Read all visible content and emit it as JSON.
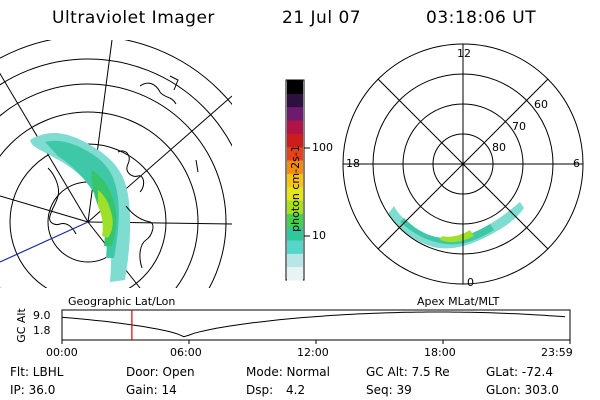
{
  "header": {
    "instrument": "Ultraviolet Imager",
    "date": "21 Jul 07",
    "time": "03:18:06 UT"
  },
  "left_panel": {
    "caption": "Geographic Lat/Lon",
    "map_type": "polar stereographic, coastlines with aurora emission"
  },
  "colorbar": {
    "label": "photon cm-2s-1",
    "ticks": [
      "100",
      "10"
    ],
    "scale": "log",
    "colors": [
      "#e8f4f4",
      "#b8e6e6",
      "#55d6c8",
      "#2ec89a",
      "#44d24a",
      "#a8e11a",
      "#e6e614",
      "#f6c40c",
      "#f48c0a",
      "#e8421a",
      "#cc1c1c",
      "#b01446",
      "#6e1a6e",
      "#2c1040",
      "#000000"
    ]
  },
  "right_panel": {
    "caption": "Apex MLat/MLT",
    "mlt_labels": [
      "12",
      "18",
      "6",
      "0"
    ],
    "lat_labels": [
      "60",
      "70",
      "80"
    ]
  },
  "timeline": {
    "ylabel": "GC Alt",
    "ticks_y": [
      "9.0",
      "1.8"
    ],
    "ticks_x": [
      "00:00",
      "06:00",
      "12:00",
      "18:00",
      "23:59"
    ],
    "current_time": "03:18",
    "marker_color": "#e00000"
  },
  "info": {
    "row1": {
      "flt": "Flt: LBHL",
      "door": "Door: Open",
      "mode": "Mode: Normal",
      "gcalt": "GC Alt: 7.5 Re",
      "glat": "GLat: -72.4"
    },
    "row2": {
      "ip": "IP: 36.0",
      "gain": "Gain: 14",
      "dsp_label": "Dsp:",
      "dsp_value": "4.2",
      "seq": "Seq: 39",
      "glon": "GLon: 303.0"
    }
  }
}
